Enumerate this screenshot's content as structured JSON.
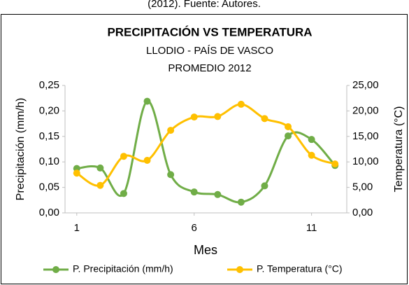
{
  "caption": "(2012). Fuente: Autores.",
  "chart_data": {
    "type": "line",
    "title": "PRECIPITACIÓN VS TEMPERATURA",
    "subtitle": [
      "LLODIO - PAÍS DE VASCO",
      "PROMEDIO 2012"
    ],
    "x_label": "Mes",
    "y_label": "Precipitación (mm/h)",
    "y2_label": "Temperatura (°C)",
    "x": [
      1,
      2,
      3,
      4,
      5,
      6,
      7,
      8,
      9,
      10,
      11,
      12
    ],
    "xlim": [
      0.5,
      12.5
    ],
    "xticks": [
      1,
      6,
      11
    ],
    "ylim": [
      0,
      0.25
    ],
    "yticks": [
      {
        "value": 0,
        "label": "0,00"
      },
      {
        "value": 0.05,
        "label": "0,05"
      },
      {
        "value": 0.1,
        "label": "0,10"
      },
      {
        "value": 0.15,
        "label": "0,15"
      },
      {
        "value": 0.2,
        "label": "0,20"
      },
      {
        "value": 0.25,
        "label": "0,25"
      }
    ],
    "y2lim": [
      0,
      25
    ],
    "y2ticks": [
      {
        "value": 0,
        "label": "0,00"
      },
      {
        "value": 5,
        "label": "5,00"
      },
      {
        "value": 10,
        "label": "10,00"
      },
      {
        "value": 15,
        "label": "15,00"
      },
      {
        "value": 20,
        "label": "20,00"
      },
      {
        "value": 25,
        "label": "25,00"
      }
    ],
    "legend": "bottom",
    "smooth": true,
    "series": [
      {
        "name": "P. Precipitación (mm/h)",
        "color": "#70ad47",
        "values": [
          0.087,
          0.088,
          0.038,
          0.219,
          0.075,
          0.041,
          0.036,
          0.021,
          0.053,
          0.151,
          0.144,
          0.093
        ]
      },
      {
        "name": "P. Temperatura (°C)",
        "color": "#ffc000",
        "axis": "y2",
        "values": [
          7.8,
          5.4,
          11.1,
          10.3,
          16.2,
          18.8,
          18.9,
          21.3,
          18.5,
          16.9,
          11.3,
          9.6
        ]
      }
    ]
  }
}
